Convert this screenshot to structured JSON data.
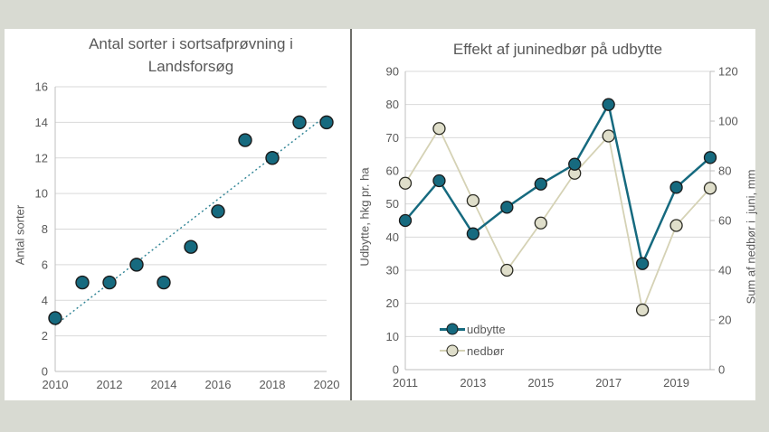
{
  "page": {
    "background_color": "#d8dad2",
    "panel_color": "#ffffff",
    "divider_color": "#6d6d68",
    "text_color": "#595959"
  },
  "chart_data": [
    {
      "type": "scatter",
      "title": "Antal sorter i sortsafprøvning i Landsforsøg",
      "title_lines": [
        "Antal sorter i sortsafprøvning i",
        "Landsforsøg"
      ],
      "ylabel": "Antal sorter",
      "xlabel": "",
      "x": [
        2010,
        2011,
        2012,
        2013,
        2014,
        2015,
        2016,
        2017,
        2018,
        2019,
        2020
      ],
      "values": [
        3,
        5,
        5,
        6,
        5,
        7,
        9,
        13,
        12,
        14,
        14
      ],
      "ylim": [
        0,
        16
      ],
      "ytick_step": 2,
      "xticks": [
        2010,
        2012,
        2014,
        2016,
        2018,
        2020
      ],
      "trendline": {
        "style": "dotted",
        "x": [
          2010,
          2020
        ],
        "y": [
          2.6,
          14.4
        ]
      },
      "grid": true,
      "legend_position": "none",
      "colors": {
        "marker_fill": "#166a7f",
        "marker_edge": "#1a1a1a",
        "trend": "#2e8394",
        "grid": "#d9d9d9",
        "axis": "#bfbfbf"
      }
    },
    {
      "type": "line",
      "title": "Effekt af juninedbør på udbytte",
      "ylabel_left": "Udbytte, hkg pr. ha",
      "ylabel_right": "Sum af nedbør i  juni, mm",
      "x": [
        2011,
        2012,
        2013,
        2014,
        2015,
        2016,
        2017,
        2018,
        2019,
        2020
      ],
      "series": [
        {
          "name": "udbytte",
          "axis": "left",
          "values": [
            45,
            57,
            41,
            49,
            56,
            62,
            80,
            32,
            55,
            64
          ],
          "line_color": "#166a7f",
          "marker_fill": "#166a7f",
          "marker_edge": "#1a1a1a"
        },
        {
          "name": "nedbør",
          "axis": "right",
          "values": [
            75,
            97,
            68,
            40,
            59,
            79,
            94,
            24,
            58,
            73
          ],
          "line_color": "#d5d2b5",
          "marker_fill": "#dfdeca",
          "marker_edge": "#2a2a22"
        }
      ],
      "ylim_left": [
        0,
        90
      ],
      "ytick_step_left": 10,
      "ylim_right": [
        0,
        120
      ],
      "ytick_step_right": 20,
      "xticks": [
        2011,
        2013,
        2015,
        2017,
        2019
      ],
      "legend": {
        "items": [
          "udbytte",
          "nedbør"
        ],
        "position": "inside-bottom-left"
      },
      "grid": true,
      "colors": {
        "grid": "#d9d9d9",
        "axis": "#bfbfbf"
      }
    }
  ]
}
